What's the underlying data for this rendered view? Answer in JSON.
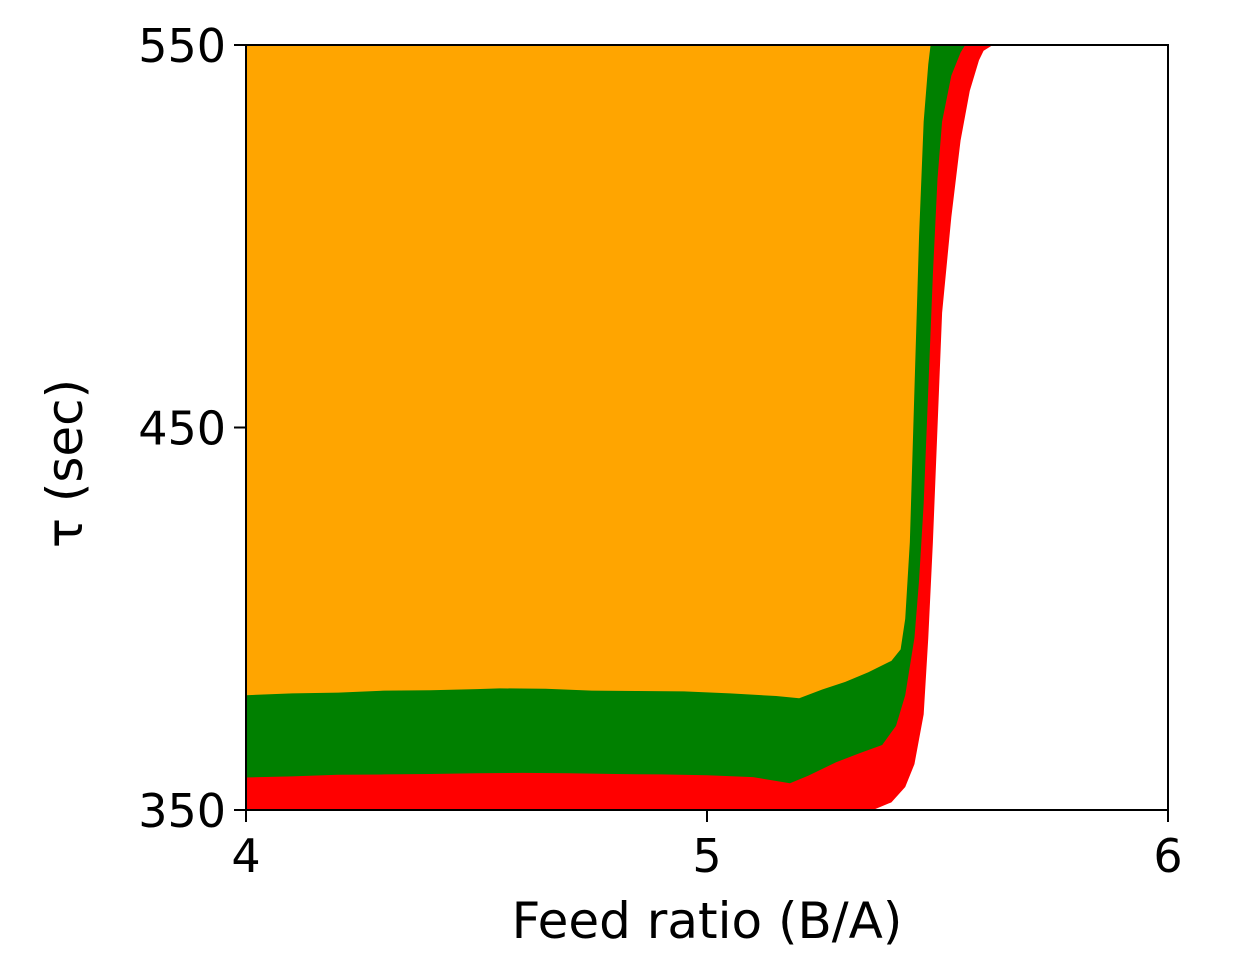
{
  "chart_data": {
    "type": "heatmap",
    "title": "",
    "xlabel": "Feed ratio (B/A)",
    "ylabel": "τ (sec)",
    "xlim": [
      4,
      6
    ],
    "ylim": [
      350,
      550
    ],
    "xticks": [
      4,
      5,
      6
    ],
    "yticks": [
      350,
      450,
      550
    ],
    "x_tick_labels": [
      "4",
      "5",
      "6"
    ],
    "y_tick_labels": [
      "350",
      "450",
      "550"
    ],
    "grid": false,
    "legend": "none",
    "background_color": "#ffffff",
    "regions": [
      {
        "color": "#ffa500",
        "description_none": "",
        "bottom_boundary": [
          [
            4.0,
            380.0
          ],
          [
            4.1,
            380.5
          ],
          [
            4.2,
            380.7
          ],
          [
            4.3,
            381.2
          ],
          [
            4.4,
            381.3
          ],
          [
            4.5,
            381.6
          ],
          [
            4.55,
            381.8
          ],
          [
            4.65,
            381.7
          ],
          [
            4.75,
            381.2
          ],
          [
            4.85,
            381.1
          ],
          [
            4.95,
            381.0
          ],
          [
            5.05,
            380.5
          ],
          [
            5.15,
            379.8
          ],
          [
            5.2,
            379.2
          ],
          [
            5.25,
            381.5
          ],
          [
            5.3,
            383.5
          ],
          [
            5.35,
            386.0
          ],
          [
            5.4,
            389.0
          ],
          [
            5.42,
            392.0
          ],
          [
            5.43,
            400.0
          ],
          [
            5.44,
            420.0
          ],
          [
            5.45,
            460.0
          ],
          [
            5.46,
            500.0
          ],
          [
            5.47,
            530.0
          ],
          [
            5.48,
            545.0
          ],
          [
            5.485,
            550.0
          ]
        ]
      },
      {
        "color": "#008000",
        "bottom_boundary": [
          [
            4.0,
            358.5
          ],
          [
            4.1,
            358.8
          ],
          [
            4.2,
            359.2
          ],
          [
            4.3,
            359.3
          ],
          [
            4.4,
            359.4
          ],
          [
            4.5,
            359.6
          ],
          [
            4.6,
            359.7
          ],
          [
            4.7,
            359.6
          ],
          [
            4.8,
            359.4
          ],
          [
            4.9,
            359.3
          ],
          [
            5.0,
            359.1
          ],
          [
            5.1,
            358.6
          ],
          [
            5.18,
            357.0
          ],
          [
            5.22,
            359.0
          ],
          [
            5.28,
            362.5
          ],
          [
            5.33,
            364.8
          ],
          [
            5.38,
            367.0
          ],
          [
            5.41,
            372.0
          ],
          [
            5.43,
            380.0
          ],
          [
            5.45,
            395.0
          ],
          [
            5.46,
            410.0
          ],
          [
            5.47,
            430.0
          ],
          [
            5.48,
            460.0
          ],
          [
            5.49,
            490.0
          ],
          [
            5.5,
            515.0
          ],
          [
            5.51,
            530.0
          ],
          [
            5.53,
            542.0
          ],
          [
            5.55,
            548.0
          ],
          [
            5.56,
            550.0
          ]
        ]
      },
      {
        "color": "#ff0000",
        "bottom_boundary": [
          [
            4.0,
            350.0
          ],
          [
            5.36,
            350.0
          ],
          [
            5.4,
            352.0
          ],
          [
            5.43,
            356.0
          ],
          [
            5.45,
            362.0
          ],
          [
            5.47,
            375.0
          ],
          [
            5.48,
            395.0
          ],
          [
            5.49,
            420.0
          ],
          [
            5.5,
            450.0
          ],
          [
            5.51,
            480.0
          ],
          [
            5.53,
            505.0
          ],
          [
            5.55,
            525.0
          ],
          [
            5.57,
            538.0
          ],
          [
            5.59,
            546.0
          ],
          [
            5.6,
            548.5
          ],
          [
            5.62,
            550.0
          ]
        ]
      }
    ]
  }
}
